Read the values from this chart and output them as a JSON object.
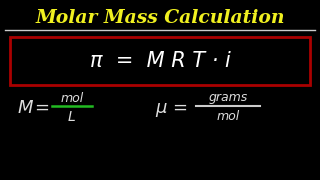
{
  "bg_color": "#000000",
  "title": "Molar Mass Calculation",
  "title_color": "#f0f020",
  "formula_box_edgecolor": "#aa0000",
  "formula_text": "π  =  M R T · i",
  "formula_text_color": "#ffffff",
  "underline_color": "#cccccc",
  "left_M": "M",
  "left_eq": " = ",
  "left_num": "mol",
  "left_den": "L",
  "left_frac_line_color": "#22bb22",
  "right_M": "μ",
  "right_eq": " = ",
  "right_num": "grams",
  "right_den": "mol",
  "right_frac_line_color": "#cccccc",
  "text_color": "#dddddd"
}
